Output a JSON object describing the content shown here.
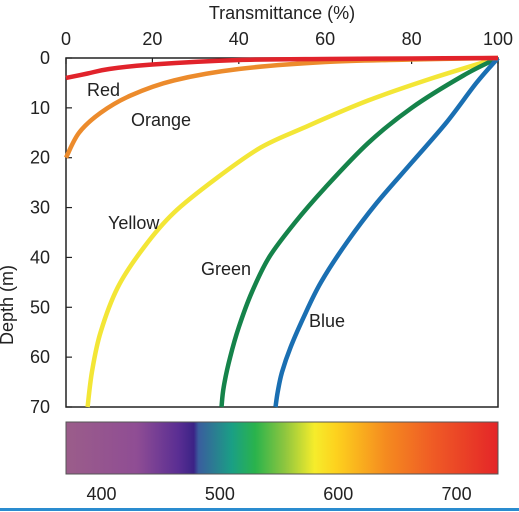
{
  "chart_data": {
    "type": "line",
    "title": "",
    "xlabel": "Transmittance (%)",
    "ylabel": "Depth (m)",
    "x_axis_position": "top",
    "y_axis_inverted": true,
    "xlim": [
      0,
      100
    ],
    "ylim": [
      0,
      70
    ],
    "xticks": [
      "0",
      "20",
      "40",
      "60",
      "80",
      "100"
    ],
    "yticks": [
      "0",
      "10",
      "20",
      "30",
      "40",
      "50",
      "60",
      "70"
    ],
    "grid": false,
    "legend": "none (series labeled inline)",
    "series": [
      {
        "name": "Red",
        "color": "#e1232b",
        "points": [
          [
            100,
            0
          ],
          [
            80,
            0.1
          ],
          [
            60,
            0.2
          ],
          [
            40,
            0.4
          ],
          [
            20,
            1.3
          ],
          [
            10,
            2.2
          ],
          [
            5,
            3.1
          ],
          [
            0,
            4
          ]
        ]
      },
      {
        "name": "Orange",
        "color": "#ec8b2c",
        "points": [
          [
            100,
            0
          ],
          [
            80,
            0.3
          ],
          [
            60,
            0.8
          ],
          [
            40,
            2.2
          ],
          [
            25,
            4.5
          ],
          [
            15,
            7.5
          ],
          [
            8,
            11
          ],
          [
            3,
            15
          ],
          [
            0,
            20
          ]
        ]
      },
      {
        "name": "Yellow",
        "color": "#f3e636",
        "points": [
          [
            100,
            0
          ],
          [
            85,
            4
          ],
          [
            70,
            8.5
          ],
          [
            55,
            14
          ],
          [
            45,
            18
          ],
          [
            35,
            24
          ],
          [
            25,
            31
          ],
          [
            18,
            38
          ],
          [
            12,
            46
          ],
          [
            8,
            55
          ],
          [
            6,
            63
          ],
          [
            5,
            70
          ]
        ]
      },
      {
        "name": "Green",
        "color": "#15834a",
        "points": [
          [
            100,
            0
          ],
          [
            92,
            3.5
          ],
          [
            80,
            10
          ],
          [
            70,
            17
          ],
          [
            60,
            26
          ],
          [
            53,
            33
          ],
          [
            47,
            40
          ],
          [
            43,
            47
          ],
          [
            40,
            54
          ],
          [
            38,
            60
          ],
          [
            36.5,
            66
          ],
          [
            36,
            70
          ]
        ]
      },
      {
        "name": "Blue",
        "color": "#1a6fb2",
        "points": [
          [
            100,
            0
          ],
          [
            95,
            5
          ],
          [
            88,
            13
          ],
          [
            80,
            21
          ],
          [
            72,
            29
          ],
          [
            65,
            37
          ],
          [
            59,
            45
          ],
          [
            55,
            52
          ],
          [
            52,
            58
          ],
          [
            50,
            63
          ],
          [
            49,
            67
          ],
          [
            48.5,
            70
          ]
        ]
      }
    ],
    "spectrum": {
      "ticks": [
        "400",
        "500",
        "600",
        "700"
      ],
      "range": [
        370,
        735
      ],
      "stops": [
        {
          "nm": 370,
          "color": "#9b5d8a"
        },
        {
          "nm": 430,
          "color": "#8f4d94"
        },
        {
          "nm": 465,
          "color": "#5a2e93"
        },
        {
          "nm": 478,
          "color": "#3b2386"
        },
        {
          "nm": 482,
          "color": "#3a5d9e"
        },
        {
          "nm": 510,
          "color": "#1a9f85"
        },
        {
          "nm": 530,
          "color": "#2ab34c"
        },
        {
          "nm": 555,
          "color": "#8ec63f"
        },
        {
          "nm": 580,
          "color": "#f6ec2b"
        },
        {
          "nm": 598,
          "color": "#fdd21e"
        },
        {
          "nm": 640,
          "color": "#f58b1f"
        },
        {
          "nm": 680,
          "color": "#ef5b25"
        },
        {
          "nm": 735,
          "color": "#e42528"
        }
      ]
    }
  },
  "footer": {
    "rule_color": "#2a8ccf"
  }
}
